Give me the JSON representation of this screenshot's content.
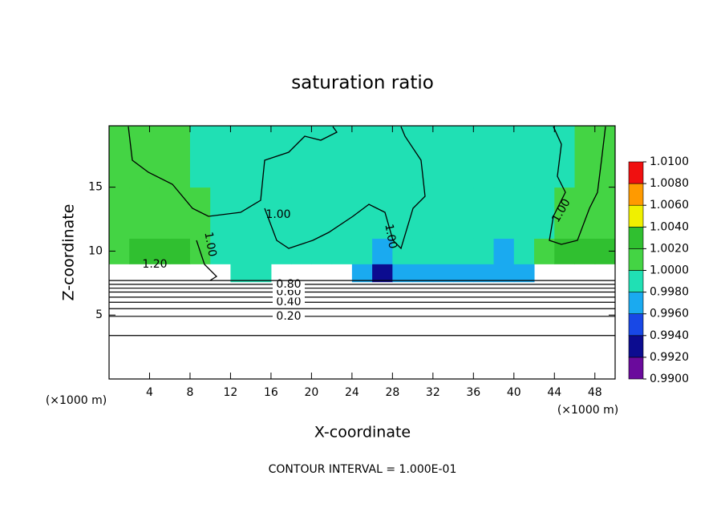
{
  "chart_data": {
    "type": "contour",
    "title": "saturation ratio",
    "x_label": "X-coordinate",
    "y_label": "Z-coordinate",
    "x_unit": "(×1000 m)",
    "y_unit": "(×1000 m)",
    "footer": "CONTOUR INTERVAL = 1.000E-01",
    "xlim": [
      0,
      50
    ],
    "ylim": [
      0,
      19.8
    ],
    "xticks": [
      4,
      8,
      12,
      16,
      20,
      24,
      28,
      32,
      36,
      40,
      44,
      48
    ],
    "yticks": [
      5,
      10,
      15
    ],
    "x_bins": [
      0,
      2,
      4,
      6,
      8,
      10,
      12,
      14,
      16,
      18,
      20,
      22,
      24,
      26,
      28,
      30,
      32,
      34,
      36,
      38,
      40,
      42,
      44,
      46,
      48,
      50
    ],
    "z_bins": [
      7.6,
      9,
      11,
      15,
      19.8
    ],
    "field": [
      [
        null,
        null,
        null,
        null,
        null,
        null,
        0.9985,
        0.9985,
        null,
        null,
        null,
        null,
        0.9975,
        0.9935,
        0.9965,
        0.9975,
        0.997,
        0.9975,
        0.997,
        0.9965,
        0.997,
        null,
        null,
        null,
        null
      ],
      [
        1.0015,
        1.002,
        1.0025,
        1.002,
        1.0005,
        0.999,
        0.9985,
        0.999,
        0.999,
        0.999,
        0.999,
        0.9985,
        0.998,
        0.9965,
        0.998,
        0.9985,
        0.999,
        0.9985,
        0.998,
        0.9975,
        0.999,
        1.0005,
        1.002,
        1.0025,
        1.002
      ],
      [
        1.0005,
        1.0005,
        1.0005,
        1.0005,
        1.0005,
        0.9995,
        0.9995,
        0.9995,
        0.9995,
        0.9995,
        0.9995,
        0.9995,
        0.9995,
        0.9985,
        0.9995,
        0.9995,
        0.9995,
        0.9995,
        0.9995,
        0.9985,
        0.9995,
        0.9995,
        1.0005,
        1.0005,
        1.0005
      ],
      [
        1.0005,
        1.0005,
        1.0005,
        1.0005,
        0.9995,
        0.9995,
        0.9995,
        0.9995,
        0.9995,
        0.9995,
        0.9995,
        0.9995,
        0.9995,
        0.9995,
        0.9995,
        0.9995,
        0.9995,
        0.9995,
        0.9995,
        0.9995,
        0.9995,
        0.9995,
        0.9995,
        1.0005,
        1.0005
      ]
    ],
    "contours": [
      {
        "value": 0.1,
        "z": 3.4
      },
      {
        "value": 0.2,
        "label": "0.20",
        "z": 4.9
      },
      {
        "value": 0.3,
        "z": 5.5
      },
      {
        "value": 0.4,
        "label": "0.40",
        "z": 6.0
      },
      {
        "value": 0.5,
        "z": 6.4
      },
      {
        "value": 0.6,
        "label": "0.60",
        "z": 6.8
      },
      {
        "value": 0.7,
        "z": 7.1
      },
      {
        "value": 0.8,
        "label": "0.80",
        "z": 7.4
      },
      {
        "value": 0.9,
        "z": 7.7
      }
    ],
    "contour_labels": [
      "1.00",
      "1.00",
      "1.00",
      "1.00",
      "1.20"
    ],
    "colorbar": {
      "colors": [
        "#6a0a9c",
        "#0c0c90",
        "#1848e6",
        "#1aaaf0",
        "#20e0b4",
        "#44d444",
        "#30c030",
        "#f0f000",
        "#ff9a00",
        "#f01010",
        "#f0a0a0"
      ],
      "ticks": [
        {
          "value": 0.99,
          "label": "0.9900"
        },
        {
          "value": 0.992,
          "label": "0.9920"
        },
        {
          "value": 0.994,
          "label": "0.9940"
        },
        {
          "value": 0.996,
          "label": "0.9960"
        },
        {
          "value": 0.998,
          "label": "0.9980"
        },
        {
          "value": 1.0,
          "label": "1.0000"
        },
        {
          "value": 1.002,
          "label": "1.0020"
        },
        {
          "value": 1.004,
          "label": "1.0040"
        },
        {
          "value": 1.006,
          "label": "1.0060"
        },
        {
          "value": 1.008,
          "label": "1.0080"
        },
        {
          "value": 1.01,
          "label": "1.0100"
        }
      ]
    }
  }
}
